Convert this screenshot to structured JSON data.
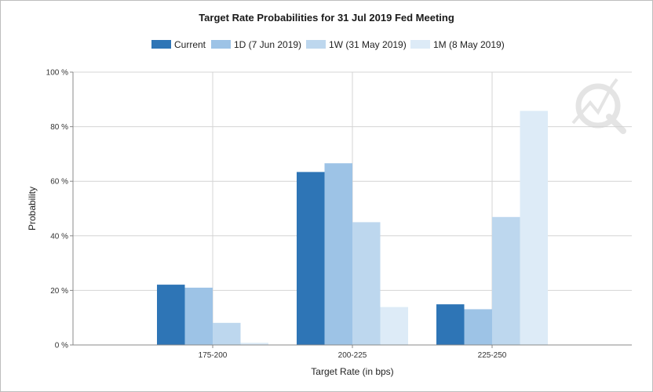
{
  "chart_data": {
    "type": "bar",
    "title": "Target Rate Probabilities for 31 Jul 2019 Fed Meeting",
    "xlabel": "Target Rate (in bps)",
    "ylabel": "Probability",
    "ylim": [
      0,
      100
    ],
    "yticks": [
      0,
      20,
      40,
      60,
      80,
      100
    ],
    "ytick_labels": [
      "0 %",
      "20 %",
      "40 %",
      "60 %",
      "80 %",
      "100 %"
    ],
    "categories": [
      "175-200",
      "200-225",
      "225-250"
    ],
    "series": [
      {
        "name": "Current",
        "color": "#2e75b6",
        "values": [
          22.1,
          63.4,
          14.9
        ]
      },
      {
        "name": "1D (7 Jun 2019)",
        "color": "#9dc3e6",
        "values": [
          21.0,
          66.6,
          13.1
        ]
      },
      {
        "name": "1W (31 May 2019)",
        "color": "#bdd7ee",
        "values": [
          8.1,
          45.0,
          46.9
        ]
      },
      {
        "name": "1M (8 May 2019)",
        "color": "#ddebf7",
        "values": [
          0.8,
          13.9,
          85.8
        ]
      }
    ],
    "grid": true,
    "legend_position": "top"
  }
}
